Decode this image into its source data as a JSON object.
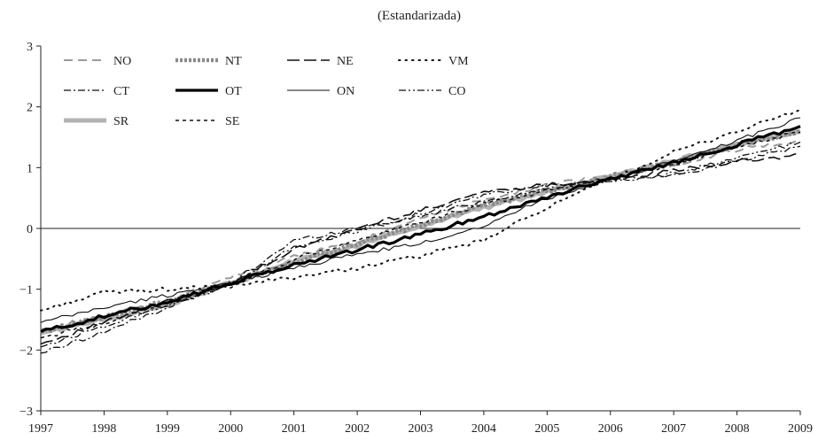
{
  "chart_data": {
    "type": "line",
    "title": "(Estandarizada)",
    "xlabel": "",
    "ylabel": "",
    "x_range": [
      1997,
      2009
    ],
    "ylim": [
      -3,
      3
    ],
    "x_ticks": [
      "1997",
      "1998",
      "1999",
      "2000",
      "2001",
      "2002",
      "2003",
      "2004",
      "2005",
      "2006",
      "2007",
      "2008",
      "2009"
    ],
    "y_ticks": [
      "3",
      "2",
      "1",
      "0",
      "−1",
      "−2",
      "−3"
    ],
    "zero_line": true,
    "grid": false,
    "legend_position": "top-left",
    "series": [
      {
        "name": "NO",
        "style": "dash-gray",
        "x": [
          1997,
          1998,
          1999,
          2000,
          2001,
          2002,
          2003,
          2004,
          2005,
          2006,
          2007,
          2008,
          2009
        ],
        "y": [
          -1.65,
          -1.45,
          -1.2,
          -0.8,
          -0.45,
          -0.22,
          0.18,
          0.48,
          0.72,
          0.85,
          1.05,
          1.3,
          1.45
        ]
      },
      {
        "name": "NT",
        "style": "dotted-thick-gray",
        "x": [
          1997,
          1998,
          1999,
          2000,
          2001,
          2002,
          2003,
          2004,
          2005,
          2006,
          2007,
          2008,
          2009
        ],
        "y": [
          -1.7,
          -1.45,
          -1.2,
          -0.9,
          -0.55,
          -0.25,
          0.05,
          0.38,
          0.62,
          0.85,
          1.08,
          1.38,
          1.6
        ]
      },
      {
        "name": "NE",
        "style": "long-dash-black",
        "x": [
          1997,
          1998,
          1999,
          2000,
          2001,
          2002,
          2003,
          2004,
          2005,
          2006,
          2007,
          2008,
          2009
        ],
        "y": [
          -1.9,
          -1.55,
          -1.2,
          -0.9,
          -0.35,
          0.0,
          0.3,
          0.6,
          0.72,
          0.8,
          0.95,
          1.1,
          1.2
        ]
      },
      {
        "name": "VM",
        "style": "dotted-black",
        "x": [
          1997,
          1998,
          1999,
          2000,
          2001,
          2002,
          2003,
          2004,
          2005,
          2006,
          2007,
          2008,
          2009
        ],
        "y": [
          -1.35,
          -1.05,
          -1.0,
          -0.95,
          -0.8,
          -0.65,
          -0.45,
          -0.2,
          0.35,
          0.8,
          1.25,
          1.6,
          1.95
        ]
      },
      {
        "name": "CT",
        "style": "dash-dot-black",
        "x": [
          1997,
          1998,
          1999,
          2000,
          2001,
          2002,
          2003,
          2004,
          2005,
          2006,
          2007,
          2008,
          2009
        ],
        "y": [
          -2.05,
          -1.7,
          -1.3,
          -0.9,
          -0.2,
          0.0,
          0.2,
          0.45,
          0.65,
          0.8,
          0.88,
          1.1,
          1.35
        ]
      },
      {
        "name": "OT",
        "style": "thick-black",
        "x": [
          1997,
          1998,
          1999,
          2000,
          2001,
          2002,
          2003,
          2004,
          2005,
          2006,
          2007,
          2008,
          2009
        ],
        "y": [
          -1.7,
          -1.45,
          -1.2,
          -0.9,
          -0.6,
          -0.35,
          -0.1,
          0.2,
          0.52,
          0.82,
          1.08,
          1.38,
          1.68
        ]
      },
      {
        "name": "ON",
        "style": "thin-black",
        "x": [
          1997,
          1998,
          1999,
          2000,
          2001,
          2002,
          2003,
          2004,
          2005,
          2006,
          2007,
          2008,
          2009
        ],
        "y": [
          -1.55,
          -1.3,
          -1.1,
          -0.9,
          -0.65,
          -0.42,
          -0.25,
          0.05,
          0.5,
          0.8,
          1.1,
          1.45,
          1.82
        ]
      },
      {
        "name": "CO",
        "style": "dash-dot-dot-black",
        "x": [
          1997,
          1998,
          1999,
          2000,
          2001,
          2002,
          2003,
          2004,
          2005,
          2006,
          2007,
          2008,
          2009
        ],
        "y": [
          -1.95,
          -1.6,
          -1.25,
          -0.95,
          -0.3,
          -0.05,
          0.25,
          0.55,
          0.7,
          0.78,
          0.9,
          1.15,
          1.42
        ]
      },
      {
        "name": "SR",
        "style": "thick-gray",
        "x": [
          1997,
          1998,
          1999,
          2000,
          2001,
          2002,
          2003,
          2004,
          2005,
          2006,
          2007,
          2008,
          2009
        ],
        "y": [
          -1.72,
          -1.5,
          -1.25,
          -0.9,
          -0.55,
          -0.28,
          0.05,
          0.35,
          0.6,
          0.85,
          1.1,
          1.38,
          1.6
        ]
      },
      {
        "name": "SE",
        "style": "short-dash-black",
        "x": [
          1997,
          1998,
          1999,
          2000,
          2001,
          2002,
          2003,
          2004,
          2005,
          2006,
          2007,
          2008,
          2009
        ],
        "y": [
          -1.8,
          -1.55,
          -1.25,
          -0.95,
          -0.5,
          -0.2,
          0.1,
          0.4,
          0.62,
          0.82,
          1.05,
          1.35,
          1.58
        ]
      }
    ]
  }
}
